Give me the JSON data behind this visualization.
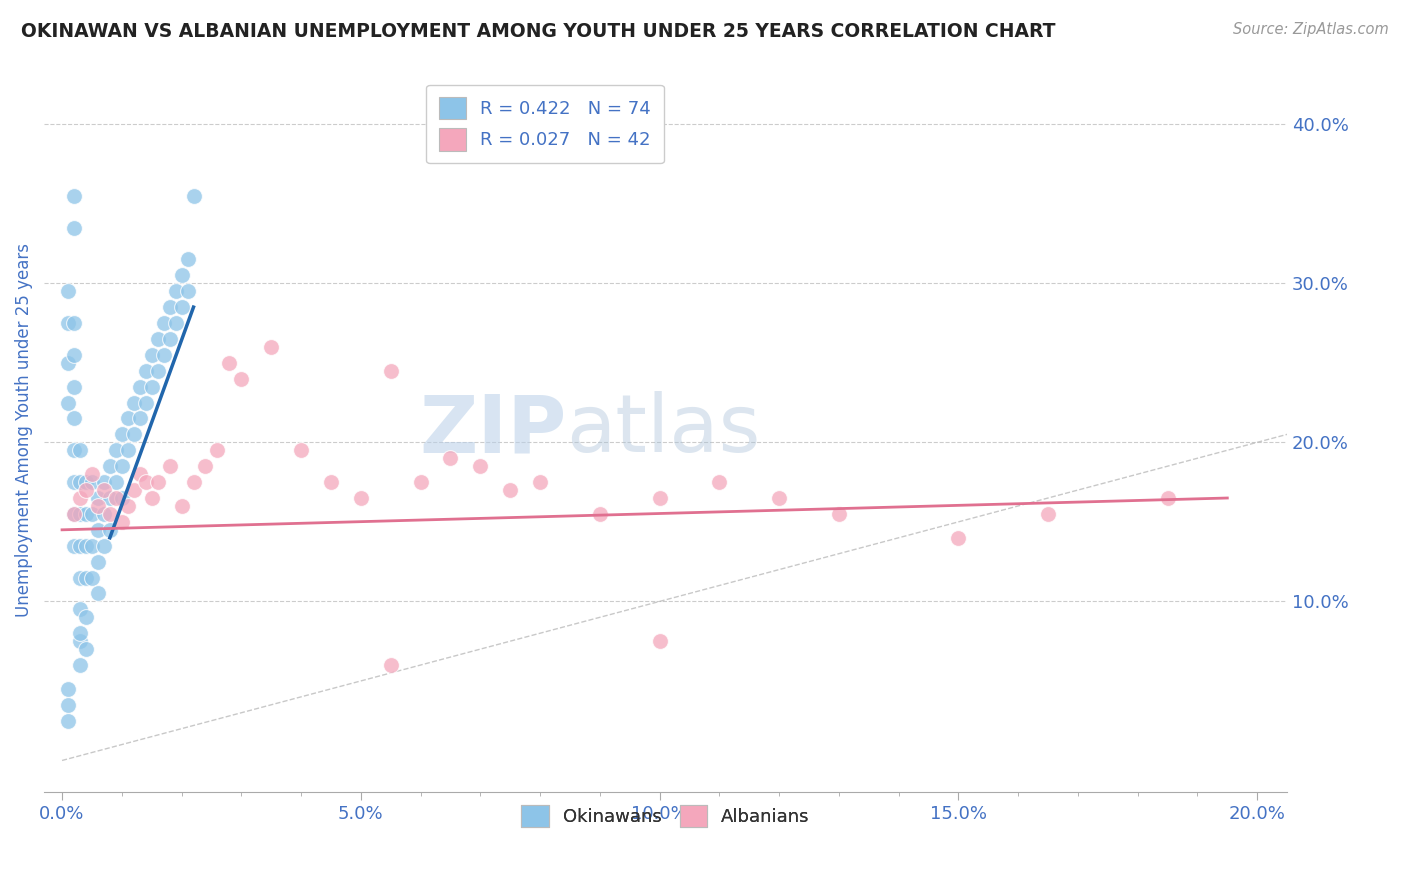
{
  "title": "OKINAWAN VS ALBANIAN UNEMPLOYMENT AMONG YOUTH UNDER 25 YEARS CORRELATION CHART",
  "source": "Source: ZipAtlas.com",
  "ylabel": "Unemployment Among Youth under 25 years",
  "xlabel_ticks": [
    "0.0%",
    "",
    "",
    "",
    "",
    "5.0%",
    "",
    "",
    "",
    "",
    "10.0%",
    "",
    "",
    "",
    "",
    "15.0%",
    "",
    "",
    "",
    "",
    "20.0%"
  ],
  "xlabel_vals": [
    0.0,
    0.01,
    0.02,
    0.03,
    0.04,
    0.05,
    0.06,
    0.07,
    0.08,
    0.09,
    0.1,
    0.11,
    0.12,
    0.13,
    0.14,
    0.15,
    0.16,
    0.17,
    0.18,
    0.19,
    0.2
  ],
  "xlabel_major_ticks": [
    0.0,
    0.05,
    0.1,
    0.15,
    0.2
  ],
  "xlabel_major_labels": [
    "0.0%",
    "5.0%",
    "10.0%",
    "15.0%",
    "20.0%"
  ],
  "ylabel_ticks": [
    "10.0%",
    "20.0%",
    "30.0%",
    "40.0%"
  ],
  "ylabel_vals": [
    0.1,
    0.2,
    0.3,
    0.4
  ],
  "xlim": [
    -0.003,
    0.205
  ],
  "ylim": [
    -0.02,
    0.435
  ],
  "watermark_zip": "ZIP",
  "watermark_atlas": "atlas",
  "legend1_label": "R = 0.422   N = 74",
  "legend2_label": "R = 0.027   N = 42",
  "legend_bottom": [
    "Okinawans",
    "Albanians"
  ],
  "color_okinawan": "#8dc4e8",
  "color_albanian": "#f4a7bc",
  "line_color_okinawan": "#2166ac",
  "line_color_albanian": "#e07090",
  "diagonal_color": "#bbbbbb",
  "background_color": "#ffffff",
  "title_color": "#222222",
  "axis_label_color": "#4472c4",
  "tick_color": "#4472c4",
  "ok_line_x0": 0.008,
  "ok_line_x1": 0.022,
  "ok_line_y0": 0.14,
  "ok_line_y1": 0.285,
  "al_line_x0": 0.0,
  "al_line_x1": 0.195,
  "al_line_y0": 0.145,
  "al_line_y1": 0.165,
  "okinawan_x": [
    0.001,
    0.001,
    0.001,
    0.001,
    0.002,
    0.002,
    0.002,
    0.002,
    0.002,
    0.002,
    0.002,
    0.002,
    0.003,
    0.003,
    0.003,
    0.003,
    0.003,
    0.003,
    0.003,
    0.004,
    0.004,
    0.004,
    0.004,
    0.005,
    0.005,
    0.005,
    0.005,
    0.006,
    0.006,
    0.006,
    0.006,
    0.007,
    0.007,
    0.007,
    0.008,
    0.008,
    0.008,
    0.009,
    0.009,
    0.01,
    0.01,
    0.01,
    0.011,
    0.011,
    0.012,
    0.012,
    0.013,
    0.013,
    0.014,
    0.014,
    0.015,
    0.015,
    0.016,
    0.016,
    0.017,
    0.017,
    0.018,
    0.018,
    0.019,
    0.019,
    0.02,
    0.02,
    0.021,
    0.021,
    0.022,
    0.002,
    0.002,
    0.003,
    0.003,
    0.004,
    0.004,
    0.001,
    0.001,
    0.001
  ],
  "okinawan_y": [
    0.295,
    0.275,
    0.25,
    0.225,
    0.275,
    0.255,
    0.235,
    0.215,
    0.195,
    0.175,
    0.155,
    0.135,
    0.195,
    0.175,
    0.155,
    0.135,
    0.115,
    0.095,
    0.075,
    0.175,
    0.155,
    0.135,
    0.115,
    0.175,
    0.155,
    0.135,
    0.115,
    0.165,
    0.145,
    0.125,
    0.105,
    0.175,
    0.155,
    0.135,
    0.185,
    0.165,
    0.145,
    0.195,
    0.175,
    0.205,
    0.185,
    0.165,
    0.215,
    0.195,
    0.225,
    0.205,
    0.235,
    0.215,
    0.245,
    0.225,
    0.255,
    0.235,
    0.265,
    0.245,
    0.275,
    0.255,
    0.285,
    0.265,
    0.295,
    0.275,
    0.305,
    0.285,
    0.315,
    0.295,
    0.355,
    0.355,
    0.335,
    0.08,
    0.06,
    0.09,
    0.07,
    0.045,
    0.035,
    0.025
  ],
  "albanian_x": [
    0.002,
    0.003,
    0.004,
    0.005,
    0.006,
    0.007,
    0.008,
    0.009,
    0.01,
    0.011,
    0.012,
    0.013,
    0.014,
    0.015,
    0.016,
    0.018,
    0.02,
    0.022,
    0.024,
    0.026,
    0.028,
    0.03,
    0.035,
    0.04,
    0.045,
    0.05,
    0.055,
    0.06,
    0.065,
    0.07,
    0.075,
    0.08,
    0.09,
    0.1,
    0.11,
    0.12,
    0.13,
    0.15,
    0.165,
    0.185,
    0.1,
    0.055
  ],
  "albanian_y": [
    0.155,
    0.165,
    0.17,
    0.18,
    0.16,
    0.17,
    0.155,
    0.165,
    0.15,
    0.16,
    0.17,
    0.18,
    0.175,
    0.165,
    0.175,
    0.185,
    0.16,
    0.175,
    0.185,
    0.195,
    0.25,
    0.24,
    0.26,
    0.195,
    0.175,
    0.165,
    0.245,
    0.175,
    0.19,
    0.185,
    0.17,
    0.175,
    0.155,
    0.165,
    0.175,
    0.165,
    0.155,
    0.14,
    0.155,
    0.165,
    0.075,
    0.06
  ]
}
